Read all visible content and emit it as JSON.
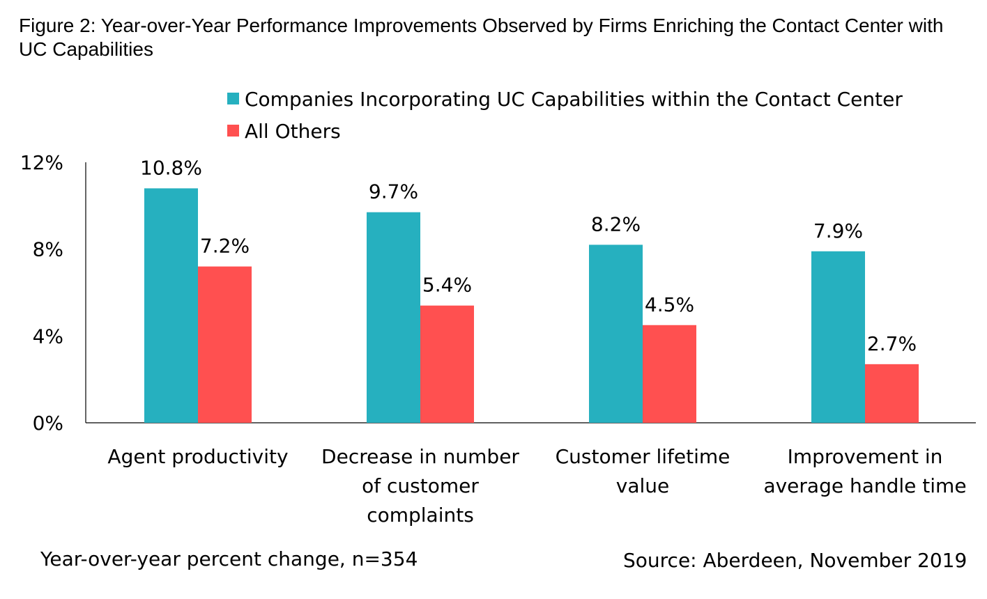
{
  "chart_data": {
    "type": "bar",
    "title": "Figure 2: Year-over-Year Performance Improvements Observed by Firms Enriching the Contact Center with UC Capabilities",
    "categories": [
      [
        "Agent productivity"
      ],
      [
        "Decrease in number",
        "of customer",
        "complaints"
      ],
      [
        "Customer lifetime",
        "value"
      ],
      [
        "Improvement in",
        "average handle time"
      ]
    ],
    "series": [
      {
        "name": "Companies Incorporating UC Capabilities within the Contact Center",
        "color": "#26B0BF",
        "values": [
          10.8,
          9.7,
          8.2,
          7.9
        ],
        "labels": [
          "10.8%",
          "9.7%",
          "8.2%",
          "7.9%"
        ]
      },
      {
        "name": "All Others",
        "color": "#FF5050",
        "values": [
          7.2,
          5.4,
          4.5,
          2.7
        ],
        "labels": [
          "7.2%",
          "5.4%",
          "4.5%",
          "2.7%"
        ]
      }
    ],
    "ylim": [
      0,
      12
    ],
    "yticks": [
      0,
      4,
      8,
      12
    ],
    "ytick_labels": [
      "0%",
      "4%",
      "8%",
      "12%"
    ],
    "legend_position": "top-center",
    "grid": false,
    "xlabel": "",
    "ylabel": ""
  },
  "footer": {
    "left_note": "Year-over-year percent change, n=354",
    "source": "Source: Aberdeen, November 2019"
  }
}
